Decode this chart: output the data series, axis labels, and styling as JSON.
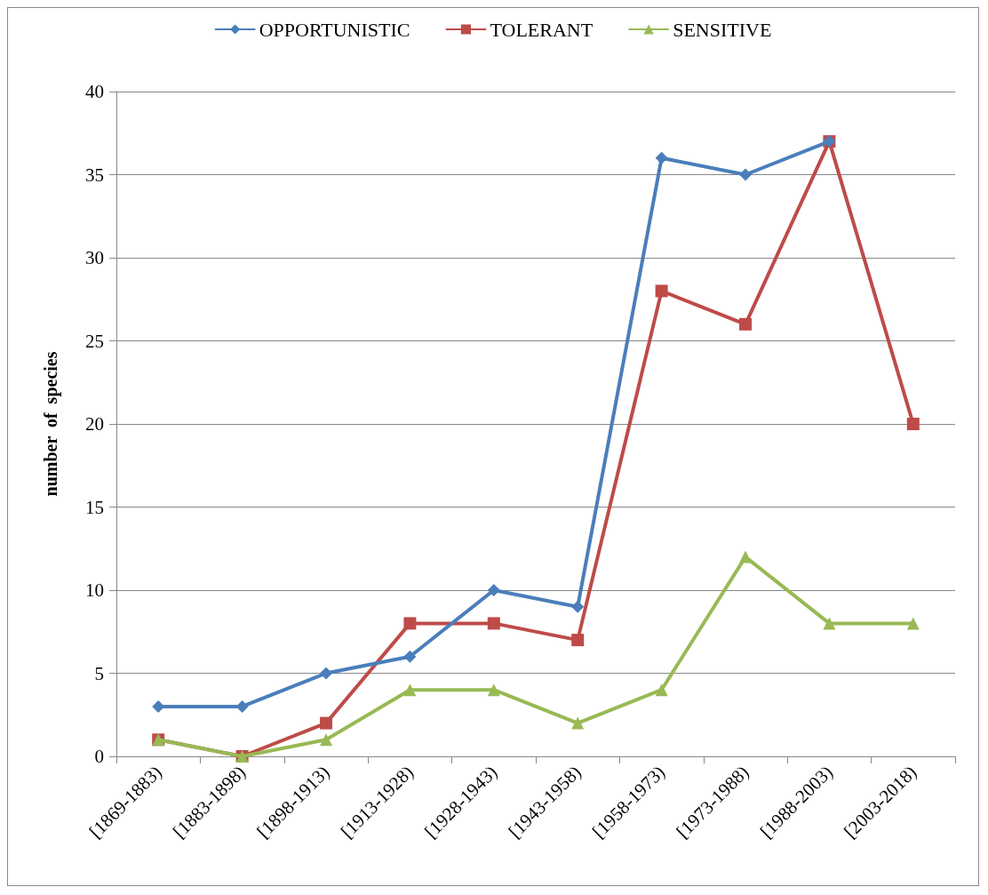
{
  "chart_data": {
    "type": "line",
    "ylabel": "number  of  species",
    "categories": [
      "[1869-1883)",
      "[1883-1898)",
      "[1898-1913)",
      "[1913-1928)",
      "[1928-1943)",
      "[1943-1958)",
      "[1958-1973)",
      "[1973-1988)",
      "[1988-2003)",
      "[2003-2018)"
    ],
    "series": [
      {
        "name": "OPPORTUNISTIC",
        "color": "#4a7ebb",
        "marker": "diamond",
        "values": [
          3,
          3,
          5,
          6,
          10,
          9,
          36,
          35,
          37,
          null
        ]
      },
      {
        "name": "TOLERANT",
        "color": "#be4b48",
        "marker": "square",
        "values": [
          1,
          0,
          2,
          8,
          8,
          7,
          28,
          26,
          37,
          20
        ]
      },
      {
        "name": "SENSITIVE",
        "color": "#98b954",
        "marker": "triangle",
        "values": [
          1,
          0,
          1,
          4,
          4,
          2,
          4,
          12,
          8,
          8
        ]
      }
    ],
    "ylim": [
      0,
      40
    ],
    "yticks": [
      0,
      5,
      10,
      15,
      20,
      25,
      30,
      35,
      40
    ],
    "grid": "y",
    "legend": "top",
    "line_style": "solid"
  }
}
